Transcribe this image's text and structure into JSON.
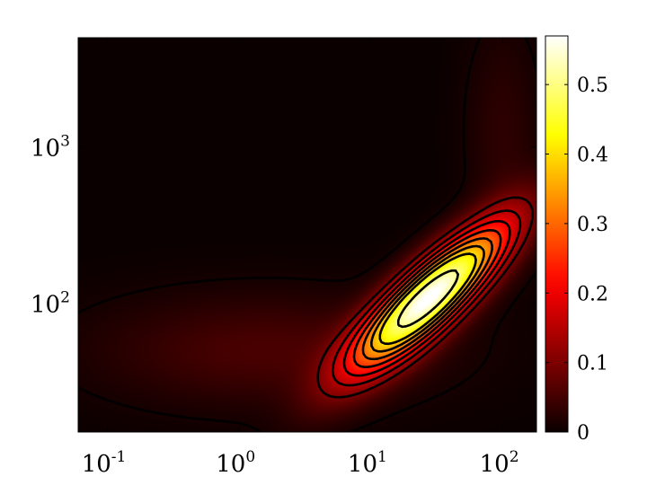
{
  "chart_data": {
    "type": "heatmap",
    "title": "",
    "xlabel": "",
    "ylabel": "",
    "x_scale": "log",
    "y_scale": "log",
    "xlim": [
      0.06,
      180
    ],
    "ylim": [
      15,
      5000
    ],
    "colormap": "hot",
    "colorbar": {
      "range": [
        0,
        0.57
      ],
      "ticks": [
        0,
        0.1,
        0.2,
        0.3,
        0.4,
        0.5
      ],
      "tick_labels": [
        "0",
        "0.1",
        "0.2",
        "0.3",
        "0.4",
        "0.5"
      ]
    },
    "x_ticks": [
      {
        "value": 0.1,
        "base": "10",
        "exp": "-1"
      },
      {
        "value": 1,
        "base": "10",
        "exp": "0"
      },
      {
        "value": 10,
        "base": "10",
        "exp": "1"
      },
      {
        "value": 100,
        "base": "10",
        "exp": "2"
      }
    ],
    "y_ticks": [
      {
        "value": 100,
        "base": "10",
        "exp": "2"
      },
      {
        "value": 1000,
        "base": "10",
        "exp": "3"
      }
    ],
    "peak": {
      "x": 28,
      "y": 110,
      "value": 0.57
    },
    "contour_levels": [
      0.01,
      0.1,
      0.15,
      0.2,
      0.25,
      0.3,
      0.35,
      0.4,
      0.5
    ],
    "grid": false,
    "legend": "none"
  }
}
